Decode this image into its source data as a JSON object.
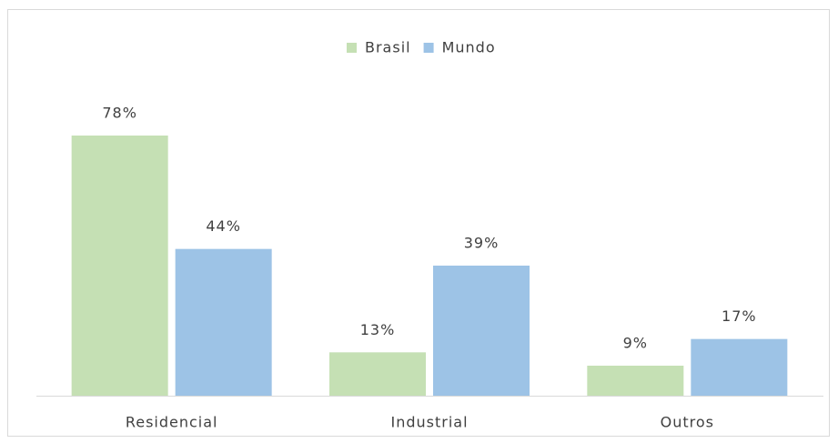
{
  "chart_data": {
    "type": "bar",
    "categories": [
      "Residencial",
      "Industrial",
      "Outros"
    ],
    "series": [
      {
        "name": "Brasil",
        "color": "#c5e0b4",
        "values": [
          78,
          13,
          9
        ],
        "value_labels": [
          "78%",
          "13%",
          "9%"
        ]
      },
      {
        "name": "Mundo",
        "color": "#9dc3e6",
        "values": [
          44,
          39,
          17
        ],
        "value_labels": [
          "44%",
          "39%",
          "17%"
        ]
      }
    ],
    "legend": "top"
  }
}
